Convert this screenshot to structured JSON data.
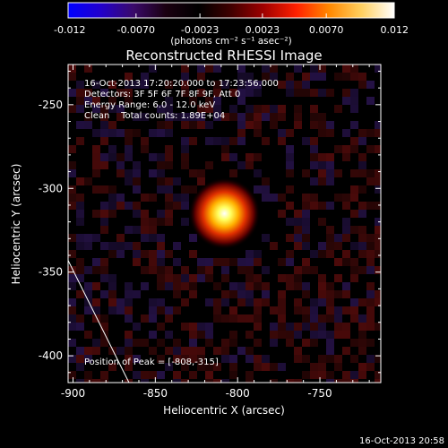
{
  "title": "Reconstructed RHESSI Image",
  "footer_timestamp": "16-Oct-2013 20:58",
  "colorbar": {
    "min": -0.012,
    "max": 0.012,
    "tick_labels": [
      "-0.012",
      "-0.0070",
      "-0.0023",
      "0.0023",
      "0.0070",
      "0.012"
    ],
    "unit_label": "(photons cm⁻² s⁻¹ asec⁻²)",
    "colors": [
      "#0000ff",
      "#2200cc",
      "#3a0a6a",
      "#1a0010",
      "#000000",
      "#400000",
      "#a00000",
      "#ff2000",
      "#ff8800",
      "#ffd060",
      "#ffffff"
    ]
  },
  "info": {
    "line1": "16-Oct-2013 17:20:20.000 to 17:23:56.000",
    "line2": "Detectors: 3F 5F 6F 7F 8F 9F, Att 0",
    "line3": "Energy Range: 6.0 - 12.0 keV",
    "line4": "Clean    Total counts: 1.89E+04"
  },
  "peak_label": "Position of Peak = [-808,-315]",
  "chart_data": {
    "type": "heatmap",
    "xlabel": "Heliocentric X (arcsec)",
    "ylabel": "Heliocentric Y (arcsec)",
    "xlim": [
      -903,
      -713
    ],
    "ylim": [
      -416,
      -226
    ],
    "x_ticks": [
      -900,
      -850,
      -800,
      -750
    ],
    "y_ticks": [
      -400,
      -350,
      -300,
      -250
    ],
    "x_tick_labels": [
      "-900",
      "-850",
      "-800",
      "-750"
    ],
    "y_tick_labels": [
      "-400",
      "-350",
      "-300",
      "-250"
    ],
    "peak": {
      "x": -808,
      "y": -315
    },
    "limb_line": [
      [
        -903,
        -343
      ],
      [
        -866,
        -416
      ]
    ]
  }
}
